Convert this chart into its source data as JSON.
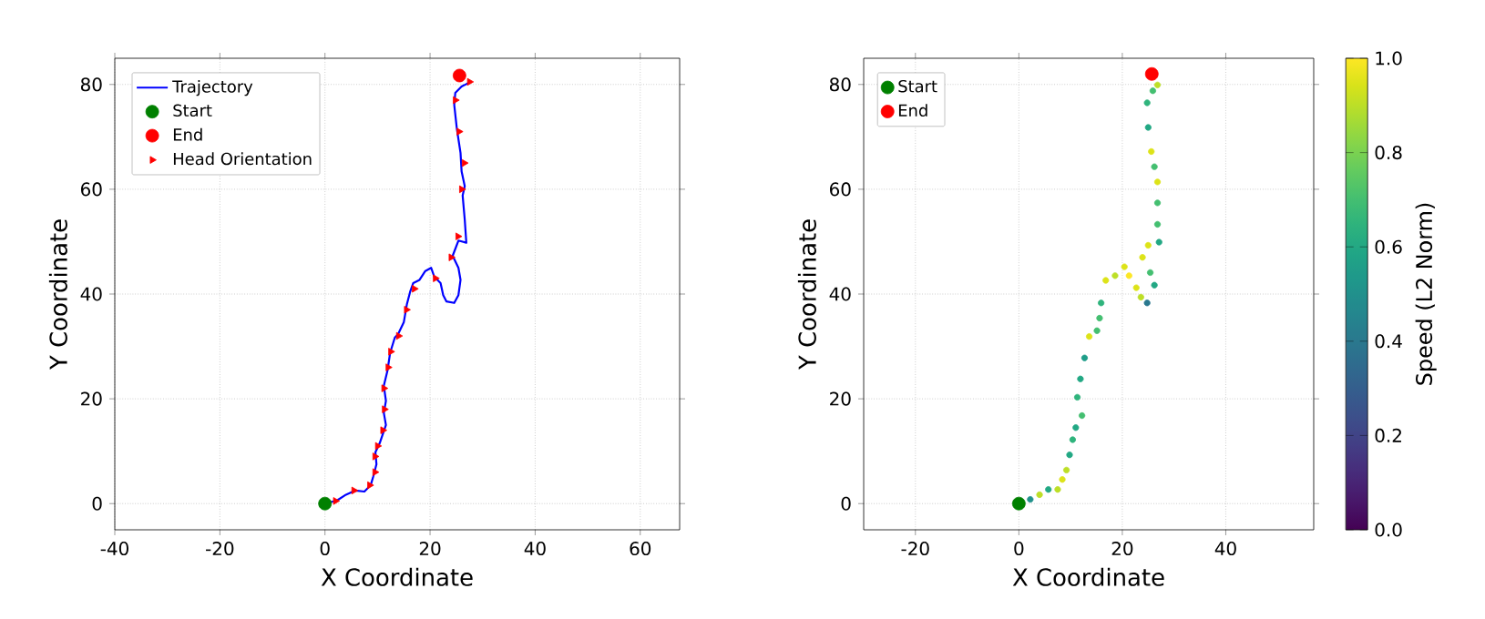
{
  "chart_data": [
    {
      "type": "line",
      "xlabel": "X Coordinate",
      "ylabel": "Y Coordinate",
      "xlim": [
        -40,
        67.5
      ],
      "ylim": [
        -5,
        85
      ],
      "xticks": [
        -40,
        -20,
        0,
        20,
        40,
        60
      ],
      "yticks": [
        0,
        20,
        40,
        60,
        80
      ],
      "grid": true,
      "legend": "top left",
      "series": [
        {
          "name": "Trajectory",
          "color": "#0000ff",
          "marker": "none",
          "line_style": "solid",
          "x": [
            0,
            2.3,
            4,
            5.8,
            7.5,
            8.7,
            9.2,
            9.8,
            9.6,
            10.4,
            11.6,
            11.2,
            11.6,
            11.2,
            11.9,
            12.4,
            13.3,
            13.9,
            15,
            15.6,
            16.2,
            16.8,
            18,
            19.1,
            20.2,
            20.8,
            22,
            22.5,
            23.1,
            24.6,
            25.4,
            25.8,
            25.4,
            24.3,
            25.4,
            26.9,
            26.6,
            26.2,
            26.6,
            26,
            25.8,
            25.1,
            24.6,
            24.8,
            26,
            27.7
          ],
          "values": [
            0,
            0.6,
            1.7,
            2.5,
            2.3,
            3.5,
            5.2,
            7.5,
            9.8,
            11.5,
            15,
            17.3,
            19.6,
            22.5,
            25.4,
            28.8,
            31.7,
            32.3,
            34.6,
            38.1,
            40.4,
            42.1,
            42.7,
            44.4,
            45,
            43.3,
            42.1,
            39.8,
            38.6,
            38.3,
            39.8,
            42.7,
            45,
            47.3,
            50.2,
            49.8,
            54.2,
            58.8,
            60.6,
            63.4,
            66.9,
            71.5,
            76.1,
            78.4,
            79.6,
            80.5
          ]
        },
        {
          "name": "Start",
          "type": "scatter",
          "color": "#008000",
          "marker": "circle",
          "x": [
            0
          ],
          "values": [
            0
          ]
        },
        {
          "name": "End",
          "type": "scatter",
          "color": "#ff0000",
          "marker": "circle",
          "x": [
            25.6
          ],
          "values": [
            81.7
          ]
        },
        {
          "name": "Head Orientation",
          "type": "scatter",
          "color": "#ff0000",
          "marker": "triangle",
          "x": [
            2,
            5.5,
            8.5,
            9.5,
            9.5,
            10,
            11,
            11.3,
            11.2,
            12,
            12.5,
            14,
            15.5,
            17,
            21,
            24,
            25.3,
            26,
            26.5,
            25.5,
            24.8,
            27.5
          ],
          "values": [
            0.5,
            2.5,
            3.5,
            6,
            9,
            11,
            14,
            18,
            22,
            26,
            29,
            32,
            37,
            41,
            43,
            47,
            51,
            60,
            65,
            71,
            77,
            80.5
          ]
        }
      ]
    },
    {
      "type": "scatter",
      "xlabel": "X Coordinate",
      "ylabel": "Y Coordinate",
      "xlim": [
        -30,
        57
      ],
      "ylim": [
        -5,
        85
      ],
      "xticks": [
        -20,
        0,
        20,
        40
      ],
      "yticks": [
        0,
        20,
        40,
        60,
        80
      ],
      "grid": true,
      "legend": "top left",
      "clabel": "Speed (L2 Norm)",
      "clim": [
        0,
        1
      ],
      "cticks": [
        {
          "value": 0,
          "label": "0.0"
        },
        0.2,
        0.4,
        0.6,
        0.8,
        {
          "value": 1,
          "label": "1.0"
        }
      ],
      "series": [
        {
          "marker": "circle",
          "x": [
            2.2,
            4,
            5.7,
            7.5,
            8.4,
            9.2,
            9.8,
            10.4,
            11,
            12.2,
            11.3,
            11.9,
            12.7,
            13.6,
            15.1,
            15.6,
            15.9,
            16.8,
            18.6,
            20.4,
            21.3,
            22.7,
            23.6,
            24.8,
            25.4,
            26.2,
            23.9,
            25,
            27.1,
            26.8,
            26.8,
            26.8,
            26.2,
            25.6,
            25,
            24.8,
            25.9,
            26.8
          ],
          "values": [
            0.8,
            1.7,
            2.7,
            2.7,
            4.6,
            6.4,
            9.3,
            12.2,
            14.5,
            16.8,
            20.3,
            23.8,
            27.8,
            31.9,
            33,
            35.4,
            38.3,
            42.6,
            43.5,
            45.2,
            43.5,
            41.2,
            39.4,
            38.3,
            44.1,
            41.7,
            47,
            49.3,
            49.9,
            53.3,
            57.4,
            61.4,
            64.3,
            67.2,
            71.8,
            76.5,
            78.8,
            79.9
          ],
          "cvalues": [
            0.5,
            0.9,
            0.6,
            0.9,
            0.95,
            0.9,
            0.6,
            0.65,
            0.6,
            0.7,
            0.65,
            0.6,
            0.55,
            0.95,
            0.7,
            0.7,
            0.65,
            0.95,
            0.9,
            0.95,
            1.0,
            0.95,
            0.9,
            0.4,
            0.7,
            0.6,
            0.95,
            0.95,
            0.6,
            0.7,
            0.7,
            0.95,
            0.7,
            0.95,
            0.6,
            0.65,
            0.7,
            0.9
          ],
          "colors": [
            "#21918c",
            "#bddf26",
            "#22a884",
            "#bddf26",
            "#dde318",
            "#bddf26",
            "#22a884",
            "#2fb47c",
            "#22a884",
            "#44bf70",
            "#2fb47c",
            "#22a884",
            "#1f9e89",
            "#dde318",
            "#44bf70",
            "#44bf70",
            "#2fb47c",
            "#dde318",
            "#bddf26",
            "#dde318",
            "#fde725",
            "#dde318",
            "#bddf26",
            "#2a788e",
            "#44bf70",
            "#22a884",
            "#dde318",
            "#dde318",
            "#22a884",
            "#44bf70",
            "#44bf70",
            "#dde318",
            "#44bf70",
            "#dde318",
            "#22a884",
            "#2fb47c",
            "#44bf70",
            "#bddf26"
          ]
        },
        {
          "name": "Start",
          "color": "#008000",
          "marker": "circle",
          "x": [
            0
          ],
          "values": [
            0
          ]
        },
        {
          "name": "End",
          "color": "#ff0000",
          "marker": "circle",
          "x": [
            25.7
          ],
          "values": [
            82
          ]
        }
      ]
    }
  ]
}
